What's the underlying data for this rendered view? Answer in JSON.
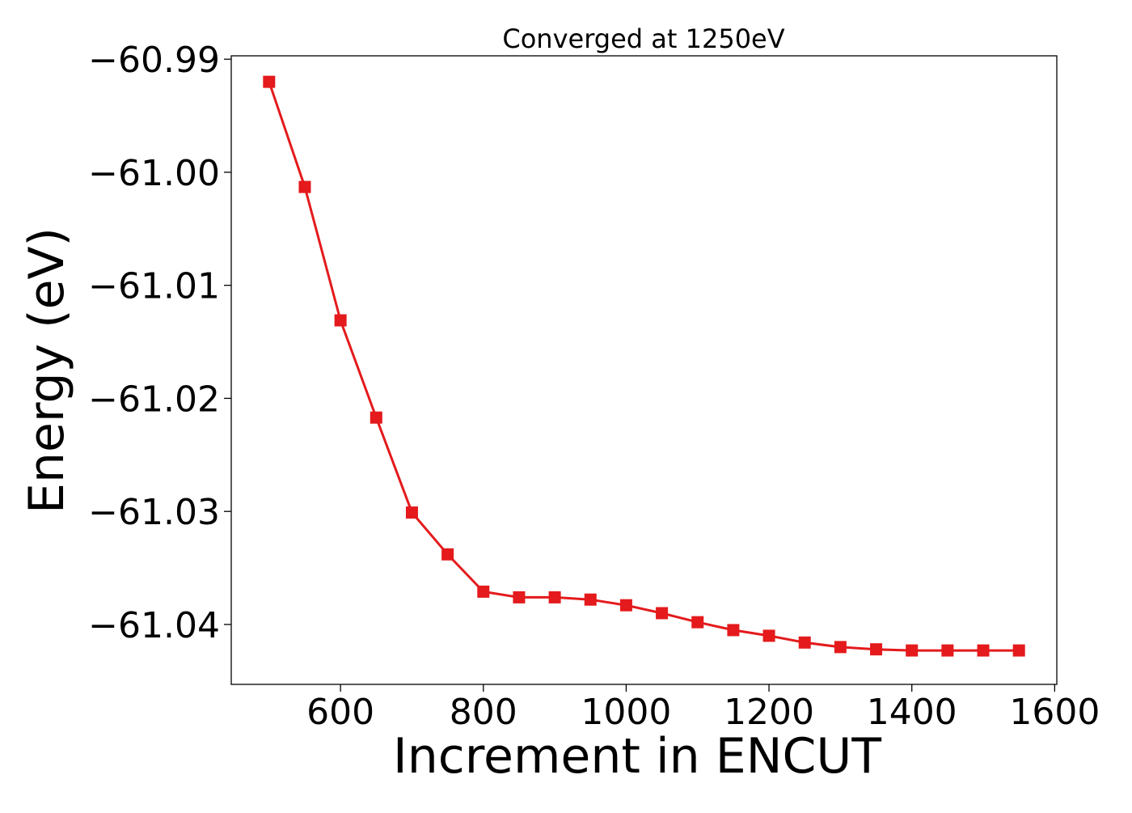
{
  "chart_data": {
    "type": "line",
    "title": "Converged at 1250eV",
    "xlabel": "Increment in ENCUT",
    "ylabel": "Energy (eV)",
    "xlim": [
      447,
      1603
    ],
    "ylim": [
      -61.0453,
      -60.9897
    ],
    "xticks": [
      600,
      800,
      1000,
      1200,
      1400,
      1600
    ],
    "xtick_labels": [
      "600",
      "800",
      "1000",
      "1200",
      "1400",
      "1600"
    ],
    "yticks": [
      -60.99,
      -61.0,
      -61.01,
      -61.02,
      -61.03,
      -61.04
    ],
    "ytick_labels": [
      "−60.99",
      "−61.00",
      "−61.01",
      "−61.02",
      "−61.03",
      "−61.04"
    ],
    "grid": false,
    "legend": "none",
    "marker": "square",
    "color": "#e41a1c",
    "series": [
      {
        "x": [
          500,
          550,
          600,
          650,
          700,
          750,
          800,
          850,
          900,
          950,
          1000,
          1050,
          1100,
          1150,
          1200,
          1250,
          1300,
          1350,
          1400,
          1450,
          1500,
          1550
        ],
        "values": [
          -60.992,
          -61.0013,
          -61.0131,
          -61.0217,
          -61.0301,
          -61.0338,
          -61.0371,
          -61.0376,
          -61.0376,
          -61.0378,
          -61.0383,
          -61.039,
          -61.0398,
          -61.0405,
          -61.041,
          -61.0416,
          -61.042,
          -61.0422,
          -61.0423,
          -61.0423,
          -61.0423,
          -61.0423
        ]
      }
    ]
  }
}
